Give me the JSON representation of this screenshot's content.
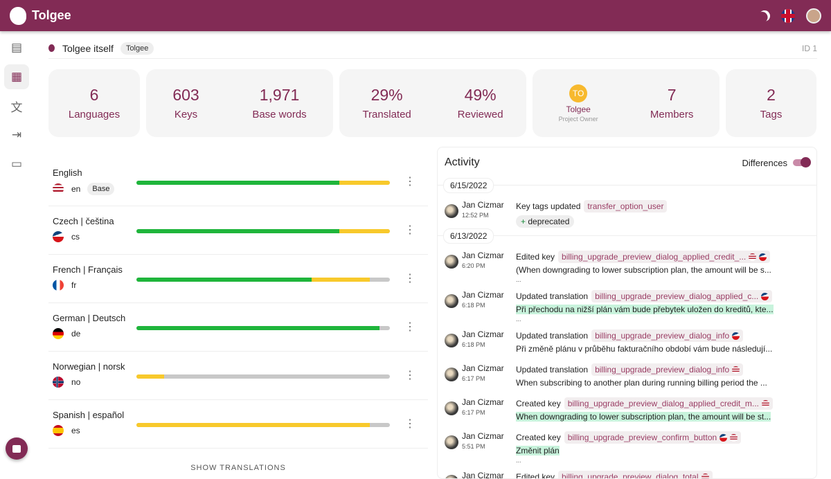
{
  "app": {
    "name": "Tolgee"
  },
  "breadcrumb": {
    "project": "Tolgee itself",
    "org_chip": "Tolgee",
    "id": "ID 1"
  },
  "stats": {
    "languages": {
      "n": "6",
      "l": "Languages"
    },
    "keys": {
      "n": "603",
      "l": "Keys"
    },
    "base_words": {
      "n": "1,971",
      "l": "Base words"
    },
    "translated": {
      "n": "29%",
      "l": "Translated"
    },
    "reviewed": {
      "n": "49%",
      "l": "Reviewed"
    },
    "owner": {
      "initials": "TO",
      "name": "Tolgee",
      "role": "Project Owner"
    },
    "members": {
      "n": "7",
      "l": "Members"
    },
    "tags": {
      "n": "2",
      "l": "Tags"
    }
  },
  "languages": [
    {
      "name": "English",
      "code": "en",
      "base": "Base",
      "reviewed": 0.8,
      "translated": 0.2,
      "flag": "us"
    },
    {
      "name": "Czech | čeština",
      "code": "cs",
      "reviewed": 0.8,
      "translated": 0.2,
      "flag": "cz"
    },
    {
      "name": "French | Français",
      "code": "fr",
      "reviewed": 0.69,
      "translated": 0.23,
      "flag": "fr"
    },
    {
      "name": "German | Deutsch",
      "code": "de",
      "reviewed": 0.96,
      "translated": 0,
      "flag": "de"
    },
    {
      "name": "Norwegian | norsk",
      "code": "no",
      "reviewed": 0,
      "translated": 0.11,
      "flag": "no"
    },
    {
      "name": "Spanish | español",
      "code": "es",
      "reviewed": 0,
      "translated": 0.92,
      "flag": "es"
    }
  ],
  "show_translations": "SHOW TRANSLATIONS",
  "activity": {
    "title": "Activity",
    "differences": "Differences",
    "differences_on": true,
    "groups": [
      {
        "date": "6/15/2022",
        "items": [
          {
            "user": "Jan Cizmar",
            "time": "12:52 PM",
            "action": "Key tags updated",
            "key": "transfer_option_user",
            "flags": [],
            "tag": "deprecated",
            "tag_prefix": "+"
          }
        ]
      },
      {
        "date": "6/13/2022",
        "items": [
          {
            "user": "Jan Cizmar",
            "time": "6:20 PM",
            "action": "Edited key",
            "key": "billing_upgrade_preview_dialog_applied_credit_...",
            "flags": [
              "us",
              "cz"
            ],
            "text": "(When downgrading to lower subscription plan, the amount will be s...",
            "added": false,
            "more": "..."
          },
          {
            "user": "Jan Cizmar",
            "time": "6:18 PM",
            "action": "Updated translation",
            "key": "billing_upgrade_preview_dialog_applied_c...",
            "flags": [
              "cz"
            ],
            "text": "Při přechodu na nižší plán vám bude přebytek uložen do kreditů, kte...",
            "added": true,
            "more": "..."
          },
          {
            "user": "Jan Cizmar",
            "time": "6:18 PM",
            "action": "Updated translation",
            "key": "billing_upgrade_preview_dialog_info",
            "flags": [
              "cz"
            ],
            "text": "Při změně plánu v průběhu fakturačního období vám bude následují...",
            "added": false
          },
          {
            "user": "Jan Cizmar",
            "time": "6:17 PM",
            "action": "Updated translation",
            "key": "billing_upgrade_preview_dialog_info",
            "flags": [
              "us"
            ],
            "text": "When subscribing to another plan during running billing period the ...",
            "added": false
          },
          {
            "user": "Jan Cizmar",
            "time": "6:17 PM",
            "action": "Created key",
            "key": "billing_upgrade_preview_dialog_applied_credit_m...",
            "flags": [
              "us"
            ],
            "text": "When downgrading to lower subscription plan, the amount will be st...",
            "added": true
          },
          {
            "user": "Jan Cizmar",
            "time": "5:51 PM",
            "action": "Created key",
            "key": "billing_upgrade_preview_confirm_button",
            "flags": [
              "cz",
              "us"
            ],
            "text": "Změnit plán",
            "added": true,
            "more": "..."
          },
          {
            "user": "Jan Cizmar",
            "time": "",
            "action": "Edited key",
            "key": "billing_upgrade_preview_dialog_total",
            "flags": [
              "us"
            ]
          }
        ]
      }
    ]
  },
  "colors": {
    "brand": "#822b55",
    "reviewed": "#1fb53b",
    "translated": "#f8c92b",
    "untranslated": "#c8c8c8"
  }
}
